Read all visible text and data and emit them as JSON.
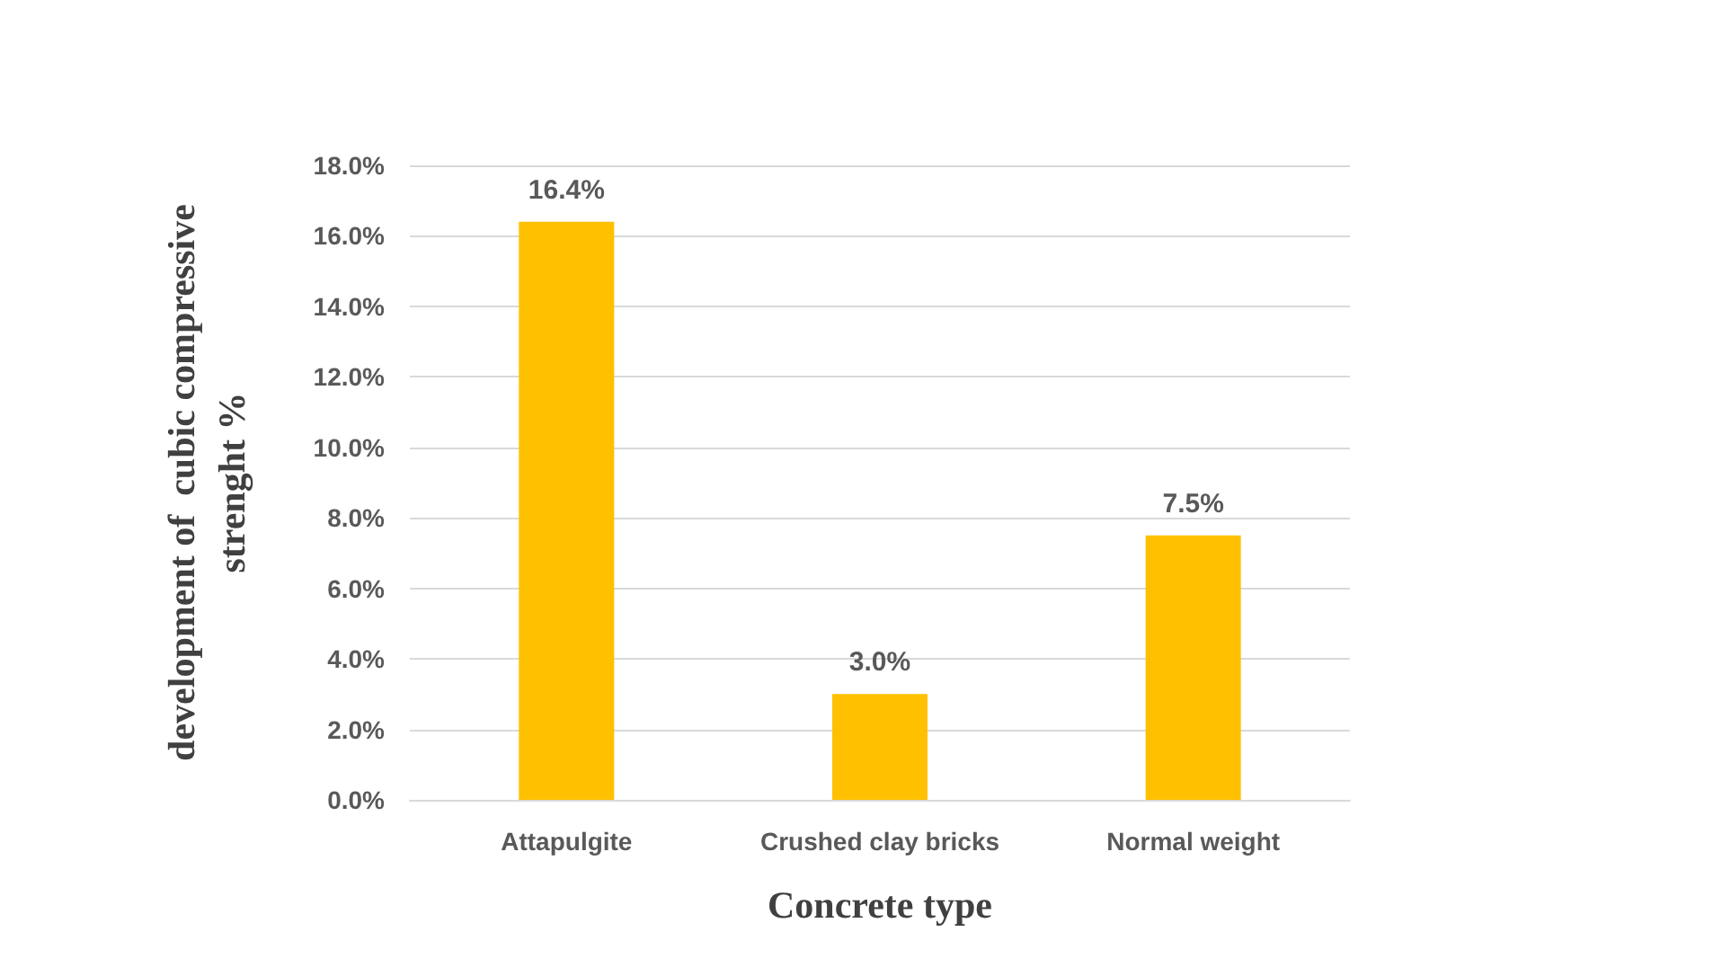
{
  "chart_data": {
    "type": "bar",
    "xlabel": "Concrete type",
    "ylabel": "development of  cubic compressive strenght %",
    "categories": [
      "Attapulgite",
      "Crushed clay bricks",
      "Normal weight"
    ],
    "values": [
      16.4,
      3.0,
      7.5
    ],
    "color": "#ffc000",
    "value_labels": [
      "16.4%",
      "3.0%",
      "7.5%"
    ],
    "ylim": [
      0,
      18
    ],
    "yticks": [
      {
        "value": 0,
        "label": "0.0%"
      },
      {
        "value": 2,
        "label": "2.0%"
      },
      {
        "value": 4,
        "label": "4.0%"
      },
      {
        "value": 6,
        "label": "6.0%"
      },
      {
        "value": 8,
        "label": "8.0%"
      },
      {
        "value": 10,
        "label": "10.0%"
      },
      {
        "value": 12,
        "label": "12.0%"
      },
      {
        "value": 14,
        "label": "14.0%"
      },
      {
        "value": 16,
        "label": "16.0%"
      },
      {
        "value": 18,
        "label": "18.0%"
      }
    ],
    "grid": "y"
  }
}
